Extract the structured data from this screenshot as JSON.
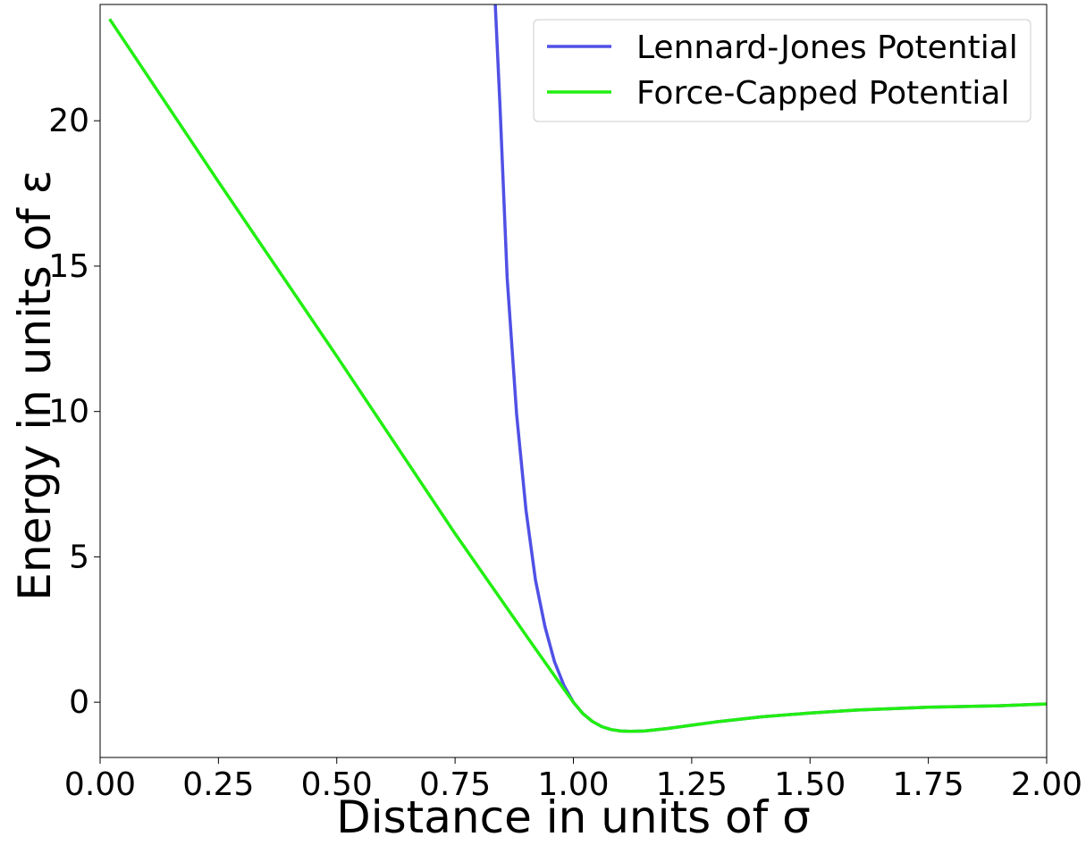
{
  "chart_data": {
    "type": "line",
    "xlabel": "Distance in units of σ",
    "ylabel": "Energy in units of ε",
    "xlim": [
      0.0,
      2.0
    ],
    "ylim": [
      -1.9,
      24.0
    ],
    "xticks": [
      "0.00",
      "0.25",
      "0.50",
      "0.75",
      "1.00",
      "1.25",
      "1.50",
      "1.75",
      "2.00"
    ],
    "yticks": [
      "0",
      "5",
      "10",
      "15",
      "20"
    ],
    "grid": false,
    "legend_position": "top-right",
    "series": [
      {
        "name": "Lennard-Jones Potential",
        "color": "#5050e6",
        "x": [
          0.835,
          0.845,
          0.86,
          0.88,
          0.9,
          0.92,
          0.94,
          0.96,
          0.98,
          1.0,
          1.02,
          1.04,
          1.06,
          1.08,
          1.1,
          1.12,
          1.15,
          1.2,
          1.25,
          1.3,
          1.4,
          1.5,
          1.6,
          1.75,
          1.9,
          2.0
        ],
        "y": [
          24.0,
          20.5,
          14.6,
          9.9,
          6.6,
          4.2,
          2.6,
          1.4,
          0.58,
          0.0,
          -0.39,
          -0.66,
          -0.84,
          -0.94,
          -0.99,
          -1.0,
          -0.99,
          -0.9,
          -0.79,
          -0.68,
          -0.5,
          -0.37,
          -0.27,
          -0.17,
          -0.12,
          -0.06
        ]
      },
      {
        "name": "Force-Capped Potential",
        "color": "#22ee11",
        "x": [
          0.02,
          0.25,
          0.5,
          0.75,
          0.9,
          0.98,
          1.0,
          1.02,
          1.04,
          1.06,
          1.08,
          1.1,
          1.12,
          1.15,
          1.2,
          1.25,
          1.3,
          1.4,
          1.5,
          1.6,
          1.75,
          1.9,
          2.0
        ],
        "y": [
          23.5,
          17.9,
          11.9,
          5.8,
          2.3,
          0.45,
          0.0,
          -0.39,
          -0.66,
          -0.84,
          -0.94,
          -0.99,
          -1.0,
          -0.99,
          -0.9,
          -0.79,
          -0.68,
          -0.5,
          -0.37,
          -0.27,
          -0.17,
          -0.12,
          -0.06
        ]
      }
    ]
  }
}
